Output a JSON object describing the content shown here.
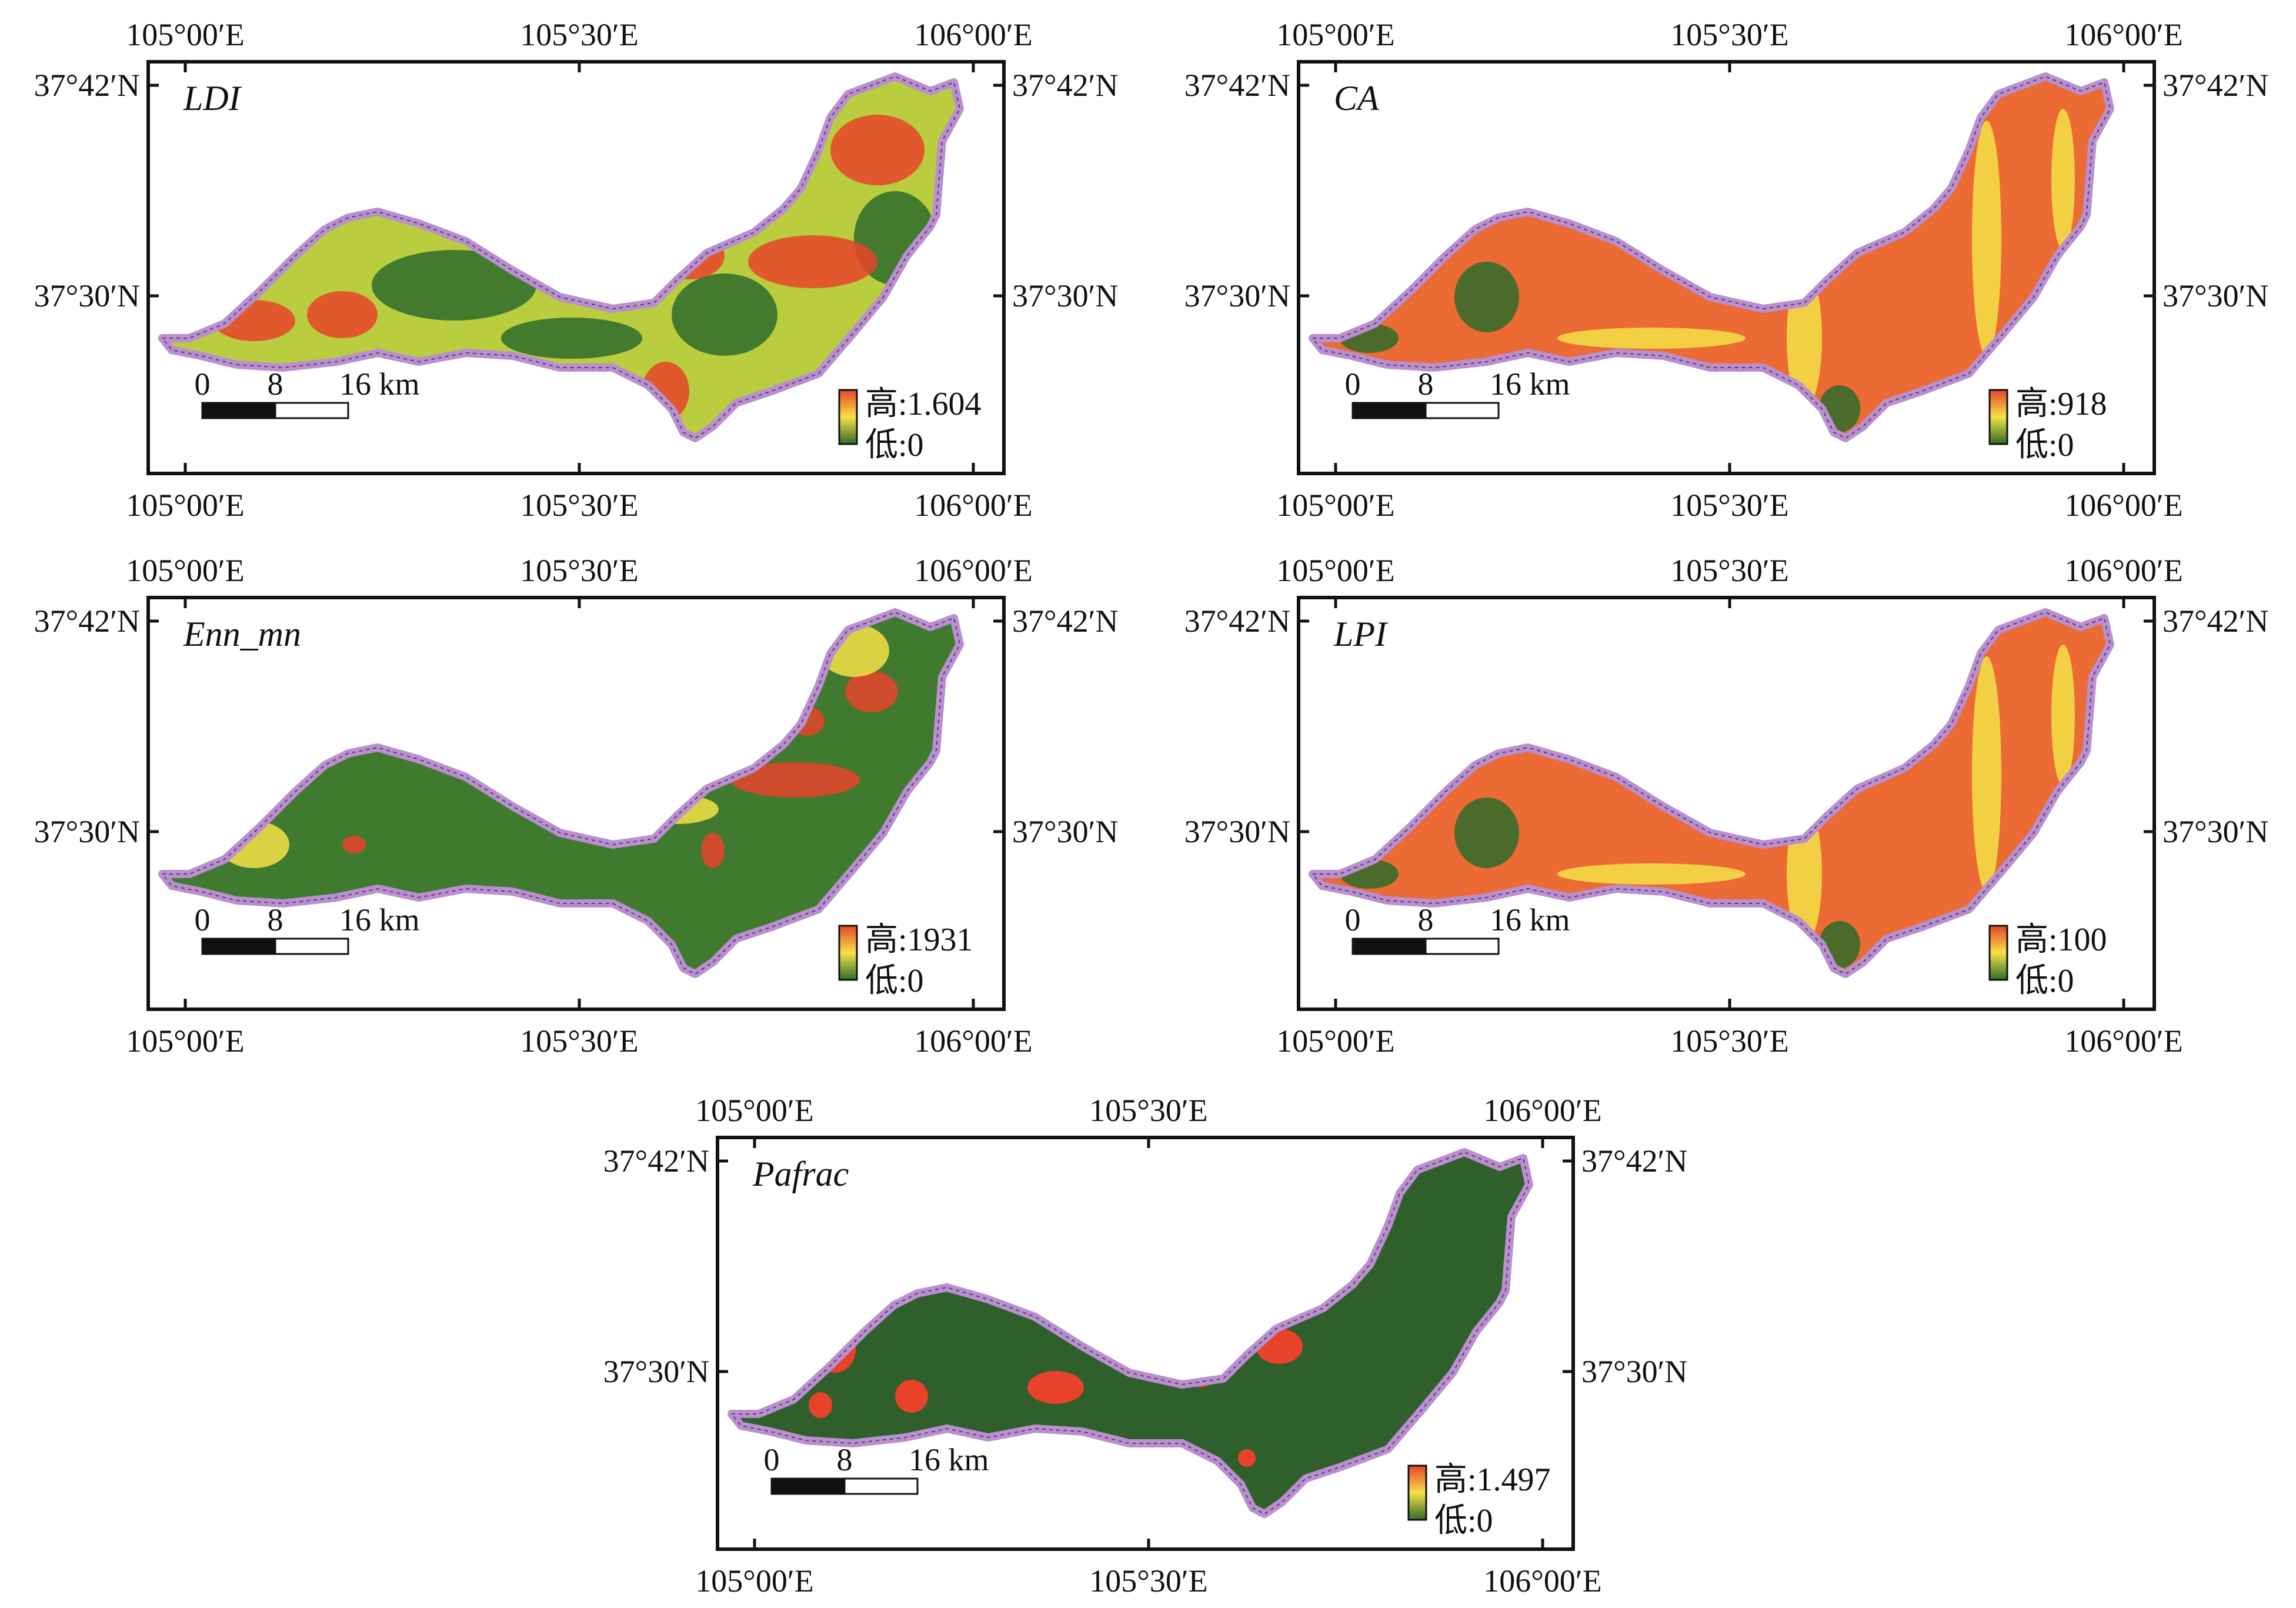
{
  "axis_labels": {
    "lon": [
      "105°00′E",
      "105°30′E",
      "106°00′E"
    ],
    "lat": [
      "37°42′N",
      "37°30′N"
    ]
  },
  "scale_bar": {
    "ticks": [
      "0",
      "8",
      "16 km"
    ]
  },
  "colors": {
    "boundary": "#b98fd0",
    "high": "#e8432a",
    "mid": "#f4e246",
    "low": "#2f6b2a",
    "frame": "#111111"
  },
  "panels": [
    {
      "id": "ldi",
      "label": "LDI",
      "legend": {
        "high": "高:1.604",
        "low": "低:0"
      },
      "pattern": "mixed"
    },
    {
      "id": "ca",
      "label": "CA",
      "legend": {
        "high": "高:918",
        "low": "低:0"
      },
      "pattern": "mostly-high"
    },
    {
      "id": "enn",
      "label": "Enn_mn",
      "legend": {
        "high": "高:1931",
        "low": "低:0"
      },
      "pattern": "mostly-low"
    },
    {
      "id": "lpi",
      "label": "LPI",
      "legend": {
        "high": "高:100",
        "low": "低:0"
      },
      "pattern": "mostly-high"
    },
    {
      "id": "pafrac",
      "label": "Pafrac",
      "legend": {
        "high": "高:1.497",
        "low": "低:0"
      },
      "pattern": "flat-low"
    }
  ]
}
